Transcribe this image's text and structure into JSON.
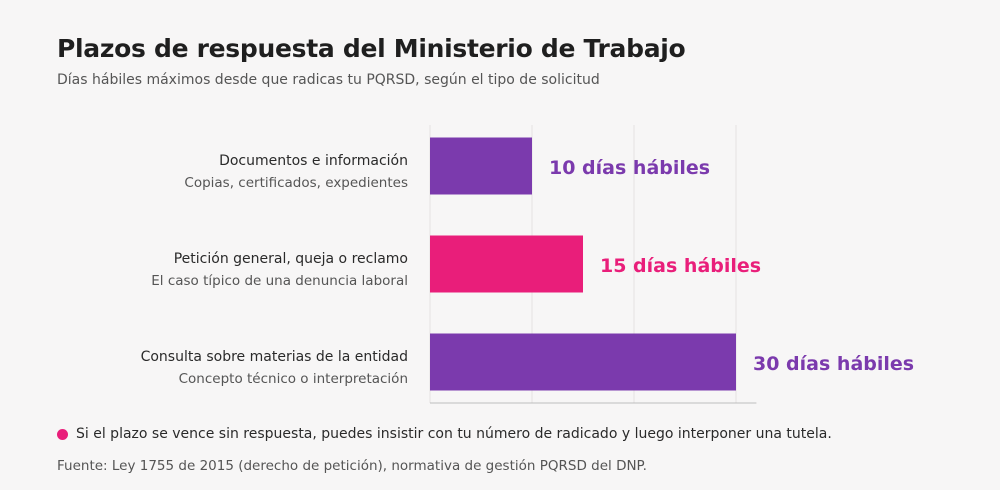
{
  "header": {
    "title": "Plazos de respuesta del Ministerio de Trabajo",
    "subtitle": "Días hábiles máximos desde que radicas tu PQRSD, según el tipo de solicitud"
  },
  "chart_data": {
    "type": "bar",
    "orientation": "horizontal",
    "categories": [
      {
        "title": "Documentos e información",
        "sub": "Copias, certificados, expedientes"
      },
      {
        "title": "Petición general, queja o reclamo",
        "sub": "El caso típico de una denuncia laboral"
      },
      {
        "title": "Consulta sobre materias de la entidad",
        "sub": "Concepto técnico o interpretación"
      }
    ],
    "values": [
      10,
      15,
      30
    ],
    "value_labels": [
      "10 días hábiles",
      "15 días hábiles",
      "30 días hábiles"
    ],
    "colors": [
      "#7b3aad",
      "#e91e7a",
      "#7b3aad"
    ],
    "xlim": [
      0,
      32
    ],
    "grid": true,
    "gridlines": [
      0,
      10,
      20,
      30
    ],
    "legend": "none"
  },
  "footer": {
    "note": "Si el plazo se vence sin respuesta, puedes insistir con tu número de radicado y luego interponer una tutela.",
    "note_color": "#e91e7a",
    "source": "Fuente: Ley 1755 de 2015 (derecho de petición), normativa de gestión PQRSD del DNP."
  }
}
